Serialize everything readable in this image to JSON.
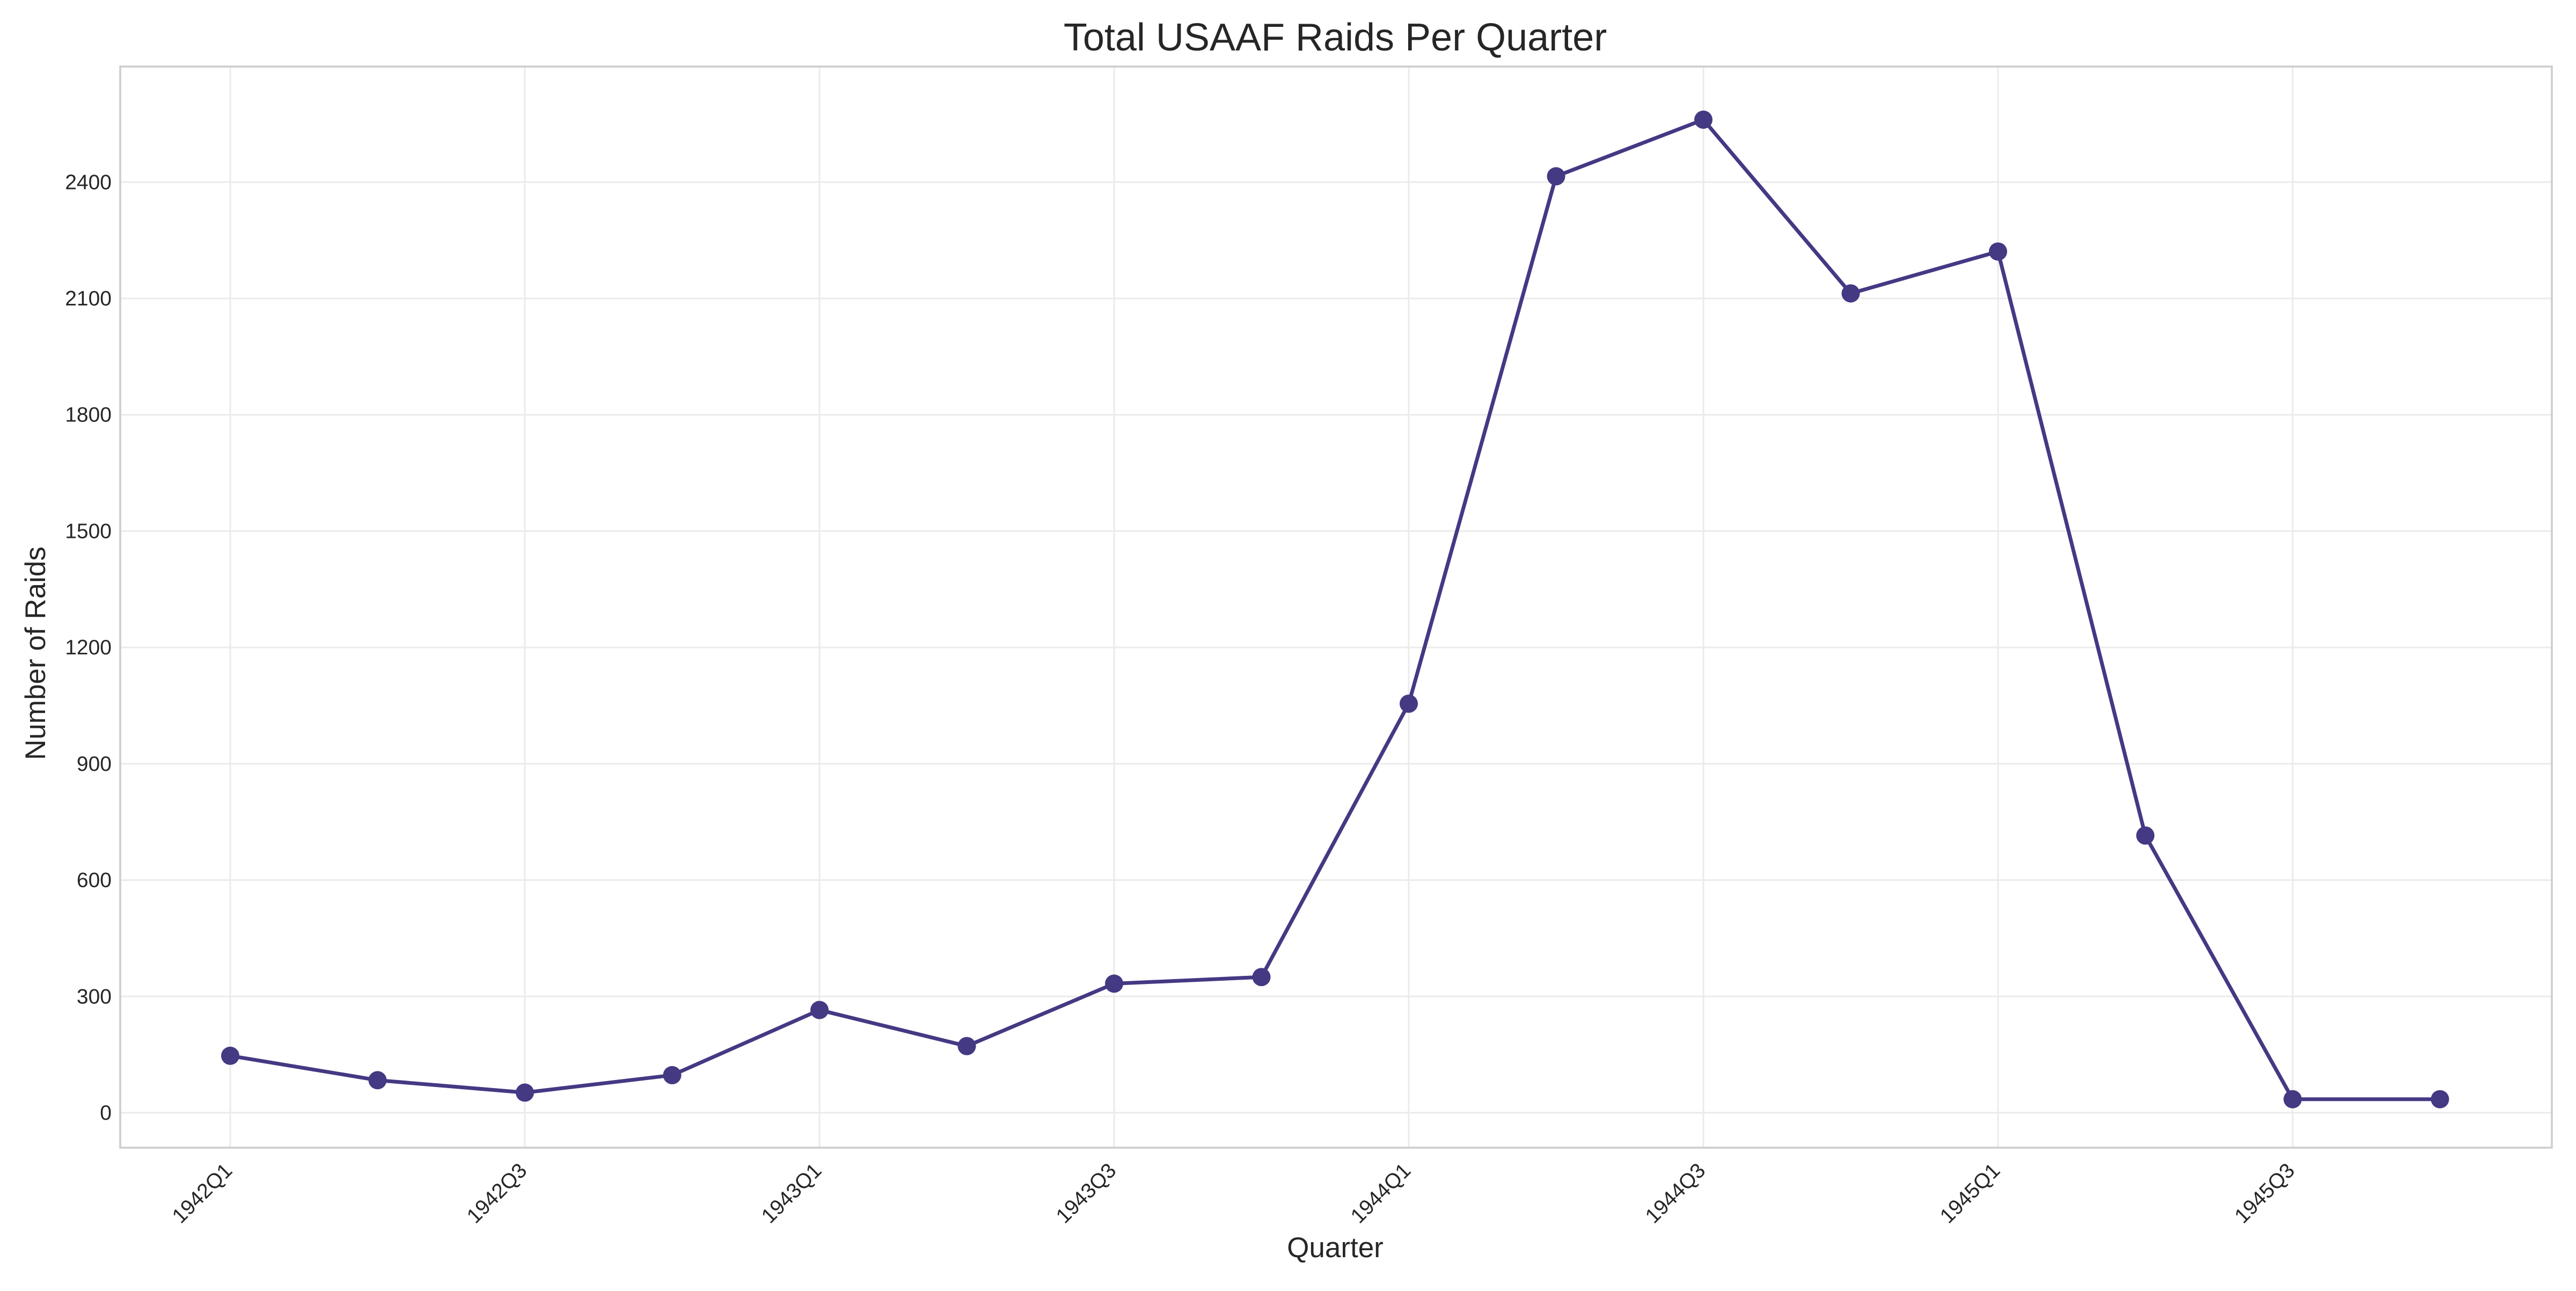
{
  "chart_data": {
    "type": "line",
    "title": "Total USAAF Raids Per Quarter",
    "xlabel": "Quarter",
    "ylabel": "Number of Raids",
    "x": [
      "1942Q1",
      "1942Q2",
      "1942Q3",
      "1942Q4",
      "1943Q1",
      "1943Q2",
      "1943Q3",
      "1943Q4",
      "1944Q1",
      "1944Q2",
      "1944Q3",
      "1944Q4",
      "1945Q1",
      "1945Q2",
      "1945Q3",
      "1945Q4"
    ],
    "x_tick_labels": [
      "1942Q1",
      "1942Q3",
      "1943Q1",
      "1943Q3",
      "1944Q1",
      "1944Q3",
      "1945Q1",
      "1945Q3"
    ],
    "y_ticks": [
      0,
      300,
      600,
      900,
      1200,
      1500,
      1800,
      2100,
      2400
    ],
    "ylim": [
      -90,
      2698
    ],
    "grid": true,
    "series": [
      {
        "color": "#443983",
        "marker": "circle",
        "values": [
          147,
          84,
          52,
          97,
          265,
          172,
          333,
          350,
          1055,
          2415,
          2561,
          2113,
          2221,
          715,
          35,
          35
        ]
      }
    ]
  }
}
